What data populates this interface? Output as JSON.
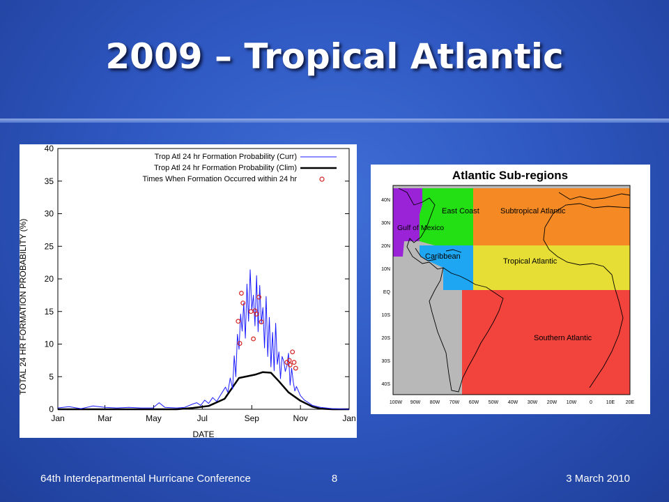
{
  "slide": {
    "title": "2009 – Tropical Atlantic",
    "footer_left": "64th Interdepartmental Hurricane Conference",
    "page_number": "8",
    "footer_right": "3 March 2010"
  },
  "chart_data": {
    "type": "line",
    "xlabel": "DATE",
    "ylabel": "TOTAL 24 HR FORMATION PROBABILITY (%)",
    "ylim": [
      0,
      40
    ],
    "yticks": [
      "0",
      "5",
      "10",
      "15",
      "20",
      "25",
      "30",
      "35",
      "40"
    ],
    "xlim": [
      1,
      366
    ],
    "xtick_labels": [
      "Jan",
      "Mar",
      "May",
      "Jul",
      "Sep",
      "Nov",
      "Jan"
    ],
    "xtick_days": [
      1,
      60,
      121,
      182,
      244,
      305,
      366
    ],
    "legend_position": "top-right",
    "legend": [
      "Trop Atl 24 hr Formation Probability (Curr)",
      "Trop Atl 24 hr Formation Probability (Clim)",
      "Times When Formation Occurred within 24 hr"
    ],
    "series": [
      {
        "name": "Trop Atl 24 hr Formation Probability (Curr)",
        "color": "#1a1aff",
        "x": [
          1,
          15,
          30,
          45,
          60,
          75,
          90,
          105,
          120,
          128,
          135,
          150,
          160,
          170,
          175,
          180,
          185,
          190,
          195,
          200,
          205,
          208,
          211,
          214,
          217,
          220,
          222,
          224,
          226,
          228,
          230,
          232,
          234,
          236,
          238,
          240,
          242,
          244,
          246,
          248,
          250,
          252,
          254,
          256,
          258,
          260,
          262,
          264,
          266,
          268,
          270,
          272,
          274,
          276,
          278,
          280,
          282,
          284,
          286,
          288,
          290,
          292,
          294,
          296,
          298,
          300,
          305,
          310,
          315,
          320,
          330,
          345,
          366
        ],
        "y": [
          0.2,
          0.4,
          0.1,
          0.5,
          0.3,
          0.2,
          0.3,
          0.2,
          0.2,
          1.0,
          0.3,
          0.2,
          0.3,
          0.8,
          1.0,
          0.6,
          1.4,
          0.9,
          1.8,
          1.2,
          2.2,
          2.8,
          3.4,
          2.6,
          4.8,
          3.1,
          8.2,
          5.0,
          11.5,
          9.2,
          14.6,
          12.0,
          16.3,
          10.9,
          19.2,
          13.5,
          21.4,
          15.2,
          17.5,
          12.8,
          20.5,
          11.9,
          19.0,
          13.2,
          15.6,
          9.4,
          17.3,
          8.1,
          14.1,
          6.5,
          11.8,
          5.9,
          13.2,
          6.9,
          8.8,
          4.7,
          8.1,
          7.4,
          5.8,
          6.7,
          8.6,
          3.7,
          6.3,
          4.2,
          2.8,
          3.5,
          2.1,
          1.4,
          1.0,
          0.6,
          0.3,
          0.1,
          0.0
        ]
      },
      {
        "name": "Trop Atl 24 hr Formation Probability (Clim)",
        "color": "#000000",
        "x": [
          1,
          150,
          170,
          190,
          210,
          228,
          248,
          258,
          268,
          278,
          290,
          305,
          320,
          330,
          345,
          366
        ],
        "y": [
          0.0,
          0.0,
          0.2,
          0.5,
          1.6,
          4.8,
          5.3,
          5.7,
          5.6,
          4.3,
          2.6,
          1.3,
          0.4,
          0.1,
          0.0,
          0.0
        ]
      },
      {
        "name": "Times When Formation Occurred within 24 hr",
        "color": "#d42020",
        "x": [
          227,
          229,
          231,
          233,
          243,
          246,
          248,
          250,
          253,
          256,
          288,
          291,
          292,
          295,
          297,
          299
        ],
        "y": [
          13.5,
          10.1,
          17.8,
          16.3,
          15.0,
          10.8,
          15.1,
          14.6,
          17.2,
          13.4,
          7.2,
          7.5,
          6.8,
          8.8,
          7.2,
          6.3
        ]
      }
    ]
  },
  "map": {
    "title": "Atlantic Sub-regions",
    "regions": [
      {
        "name": "Gulf of Mexico",
        "color": "#9a23d8"
      },
      {
        "name": "East Coast",
        "color": "#22e013"
      },
      {
        "name": "Caribbean",
        "color": "#1fa6f2"
      },
      {
        "name": "Subtropical Atlantic",
        "color": "#f58a25"
      },
      {
        "name": "Tropical Atlantic",
        "color": "#e6de35"
      },
      {
        "name": "Southern Atlantic",
        "color": "#f2433c"
      }
    ],
    "lat_labels": [
      "40N",
      "30N",
      "20N",
      "10N",
      "EQ",
      "10S",
      "20S",
      "30S",
      "40S"
    ],
    "lon_labels": [
      "100W",
      "90W",
      "80W",
      "70W",
      "60W",
      "50W",
      "40W",
      "30W",
      "20W",
      "10W",
      "0",
      "10E",
      "20E"
    ]
  }
}
